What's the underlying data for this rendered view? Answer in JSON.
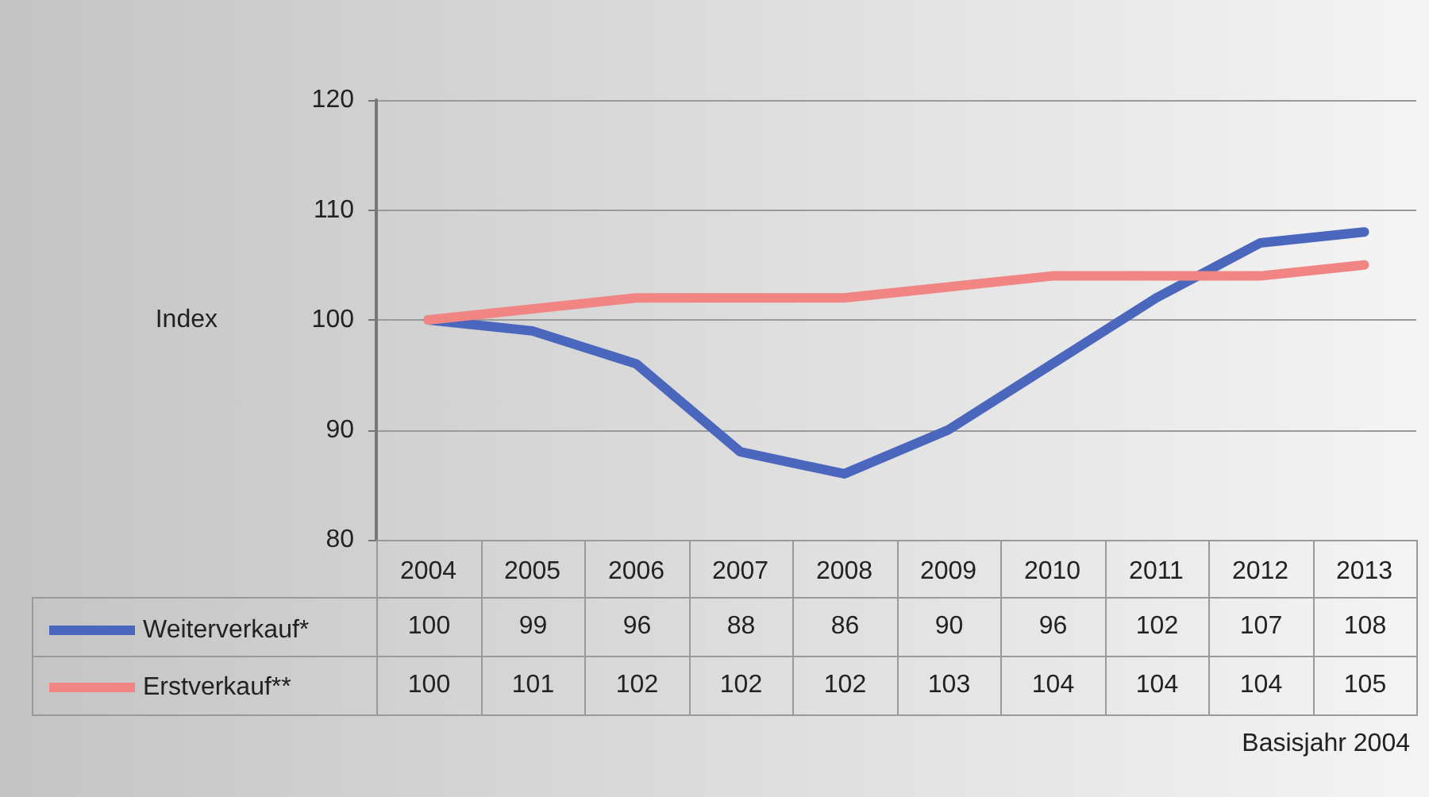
{
  "chart_data": {
    "type": "line",
    "ylabel": "Index",
    "categories": [
      "2004",
      "2005",
      "2006",
      "2007",
      "2008",
      "2009",
      "2010",
      "2011",
      "2012",
      "2013"
    ],
    "series": [
      {
        "name": "Weiterverkauf*",
        "color": "#4a67bd",
        "values": [
          100,
          99,
          96,
          88,
          86,
          90,
          96,
          102,
          107,
          108
        ]
      },
      {
        "name": "Erstverkauf**",
        "color": "#f08584",
        "values": [
          100,
          101,
          102,
          102,
          102,
          103,
          104,
          104,
          104,
          105
        ]
      }
    ],
    "ylim": [
      80,
      120
    ],
    "yticks": [
      80,
      90,
      100,
      110,
      120
    ],
    "grid": "y",
    "legend": "bottom left",
    "marker": "none",
    "line_style": "solid",
    "data_labels": true,
    "annotations": [
      "Basisjahr 2004"
    ]
  }
}
